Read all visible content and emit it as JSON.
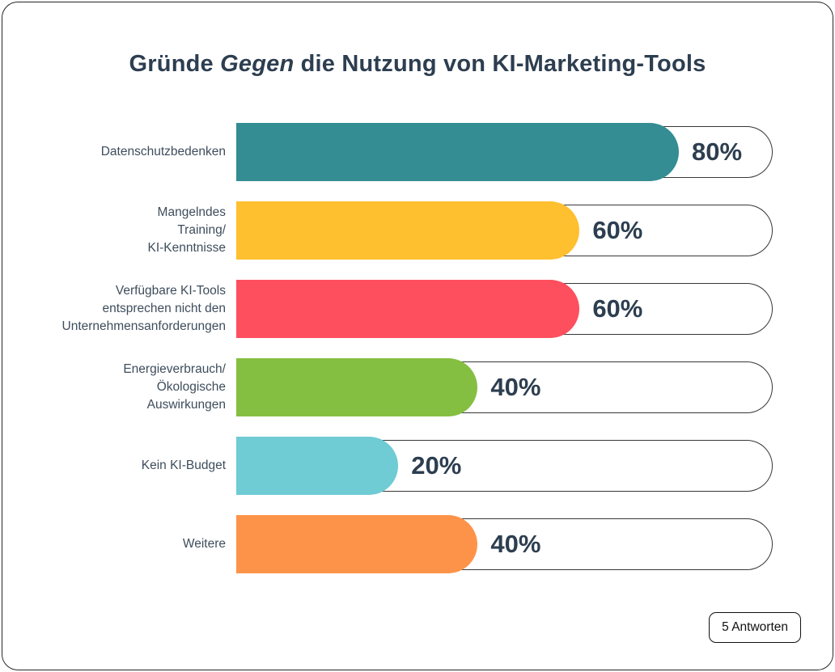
{
  "title": {
    "prefix": "Gründe ",
    "italic": "Gegen",
    "suffix": " die Nutzung von KI-Marketing-Tools"
  },
  "chart_data": {
    "type": "bar",
    "orientation": "horizontal",
    "title": "Gründe Gegen die Nutzung von KI-Marketing-Tools",
    "unit": "%",
    "xlim": [
      0,
      100
    ],
    "grid": false,
    "legend": "none",
    "categories": [
      "Datenschutzbedenken",
      "Mangelndes\nTraining/\nKI-Kenntnisse",
      "Verfügbare KI-Tools\nentsprechen nicht den\nUnternehmensanforderungen",
      "Energieverbrauch/\nÖkologische\nAuswirkungen",
      "Kein KI-Budget",
      "Weitere"
    ],
    "values": [
      80,
      60,
      60,
      40,
      20,
      40
    ],
    "value_labels": [
      "80%",
      "60%",
      "60%",
      "40%",
      "20%",
      "40%"
    ],
    "colors": [
      "#338d92",
      "#fec02f",
      "#fd4f5e",
      "#85bf41",
      "#6fcbd4",
      "#fd9349"
    ],
    "bar_display_pct": [
      82.5,
      64,
      64,
      45,
      30.2,
      45
    ]
  },
  "footer": {
    "answers_badge": "5 Antworten"
  },
  "style_colors": {
    "title_text": "#2d3e50",
    "label_text": "#3e4d5c",
    "value_text": "#2d3e50",
    "track_border": "#373737",
    "card_border": "#262626",
    "background": "#ffffff"
  }
}
